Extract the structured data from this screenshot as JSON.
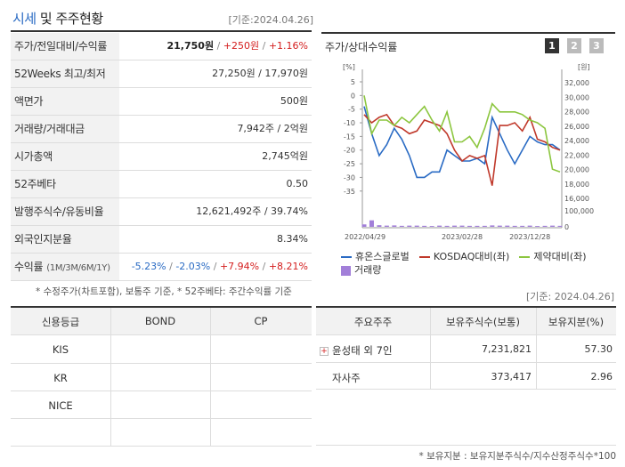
{
  "header": {
    "title_blue": "시세",
    "title_rest": " 및 주주현황",
    "date": "[기준:2024.04.26]"
  },
  "summary": {
    "rows": [
      {
        "label": "주가/전일대비/수익률",
        "price": "21,750원",
        "change": "+250원",
        "rate": "+1.16%"
      },
      {
        "label": "52Weeks 최고/최저",
        "value": "27,250원 / 17,970원"
      },
      {
        "label": "액면가",
        "value": "500원"
      },
      {
        "label": "거래량/거래대금",
        "value": "7,942주 / 2억원"
      },
      {
        "label": "시가총액",
        "value": "2,745억원"
      },
      {
        "label": "52주베타",
        "value": "0.50"
      },
      {
        "label": "발행주식수/유동비율",
        "value": "12,621,492주 / 39.74%"
      },
      {
        "label": "외국인지분율",
        "value": "8.34%"
      },
      {
        "label": "수익률",
        "label_small": "(1M/3M/6M/1Y)",
        "r1m": "-5.23%",
        "r3m": "-2.03%",
        "r6m": "+7.94%",
        "r1y": "+8.21%"
      }
    ],
    "note": "* 수정주가(차트포함), 보통주 기준, * 52주베타: 주간수익률 기준"
  },
  "chart": {
    "title": "주가/상대수익률",
    "pages": [
      "1",
      "2",
      "3"
    ],
    "left_unit": "[%]",
    "right_unit": "[원]",
    "legend": {
      "s1": "휴온스글로벌",
      "s2": "KOSDAQ대비(좌)",
      "s3": "제약대비(좌)",
      "s4": "거래량"
    },
    "colors": {
      "s1": "#2a6bc4",
      "s2": "#c0392b",
      "s3": "#8cc63f",
      "vol": "#a27fd9"
    }
  },
  "chart_data": {
    "type": "line",
    "x_ticks": [
      "2022/04/29",
      "2023/02/28",
      "2023/12/28"
    ],
    "y_left_ticks": [
      5,
      0,
      -5,
      -10,
      -15,
      -20,
      -25,
      -30,
      -35
    ],
    "y_left_range": [
      -38,
      5
    ],
    "y_right_ticks": [
      "32,000",
      "30,000",
      "28,000",
      "26,000",
      "24,000",
      "22,000",
      "20,000",
      "18,000",
      "16,000"
    ],
    "y_right_range": [
      15200,
      33000
    ],
    "vol_ticks": [
      "100,000",
      "0"
    ],
    "series": [
      {
        "name": "휴온스글로벌",
        "values": [
          -4,
          -14,
          -22,
          -18,
          -12,
          -16,
          -22,
          -30,
          -30,
          -28,
          -28,
          -20,
          -22,
          -24,
          -24,
          -23,
          -25,
          -8,
          -14,
          -20,
          -25,
          -20,
          -15,
          -17,
          -18,
          -18,
          -20
        ]
      },
      {
        "name": "KOSDAQ대비(좌)",
        "values": [
          -7,
          -10,
          -8,
          -7,
          -11,
          -12,
          -14,
          -13,
          -9,
          -10,
          -11,
          -14,
          -20,
          -24,
          -22,
          -23,
          -22,
          -33,
          -11,
          -11,
          -10,
          -13,
          -8,
          -16,
          -17,
          -19,
          -20
        ]
      },
      {
        "name": "제약대비(좌)",
        "values": [
          0,
          -14,
          -9,
          -9,
          -11,
          -8,
          -10,
          -7,
          -4,
          -9,
          -13,
          -6,
          -17,
          -17,
          -15,
          -19,
          -12,
          -3,
          -6,
          -6,
          -6,
          -7,
          -9,
          -10,
          -12,
          -27,
          -28
        ]
      },
      {
        "name": "거래량",
        "values": [
          12000,
          32000,
          8000,
          6000,
          7000,
          5000,
          6000,
          6000,
          5000,
          4000,
          6000,
          5000,
          6000,
          6000,
          5000,
          5000,
          5000,
          7000,
          6000,
          6000,
          5000,
          5000,
          6000,
          4000,
          5000,
          6000,
          5000
        ]
      }
    ]
  },
  "date2": "[기준: 2024.04.26]",
  "credit": {
    "headers": [
      "신용등급",
      "BOND",
      "CP"
    ],
    "rows": [
      [
        "KIS",
        "",
        ""
      ],
      [
        "KR",
        "",
        ""
      ],
      [
        "NICE",
        "",
        ""
      ],
      [
        "",
        "",
        ""
      ]
    ]
  },
  "shareholders": {
    "headers": [
      "주요주주",
      "보유주식수(보통)",
      "보유지분(%)"
    ],
    "rows": [
      {
        "name": "윤성태 외 7인",
        "shares": "7,231,821",
        "pct": "57.30"
      },
      {
        "name": "자사주",
        "shares": "373,417",
        "pct": "2.96"
      }
    ],
    "footnote": "* 보유지분 : 보유지분주식수/지수산정주식수*100"
  }
}
